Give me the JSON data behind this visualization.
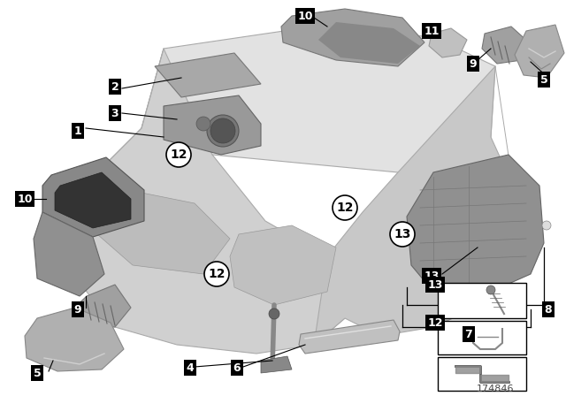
{
  "background_color": "#ffffff",
  "diagram_id": "174846",
  "panel_color": "#d8d8d8",
  "panel_edge": "#aaaaaa",
  "part_color": "#b8b8b8",
  "part_edge": "#888888",
  "dark_part": "#909090",
  "label_bg": "#000000",
  "label_fg": "#ffffff"
}
